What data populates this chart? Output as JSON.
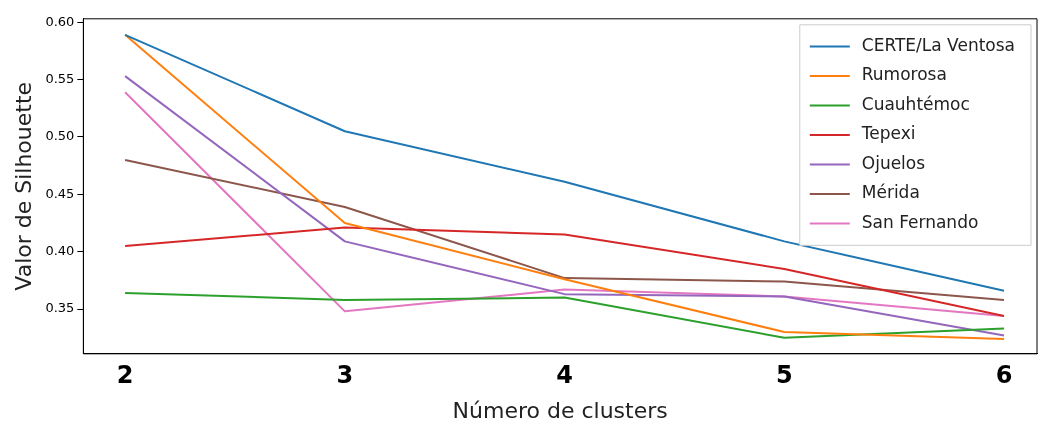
{
  "chart_data": {
    "type": "line",
    "xlabel": "Número de clusters",
    "ylabel": "Valor de Silhouette",
    "x": [
      2,
      3,
      4,
      5,
      6
    ],
    "xlim": [
      1.81,
      6.15
    ],
    "xticks": [
      2,
      3,
      4,
      5,
      6
    ],
    "ylim": [
      0.311,
      0.603
    ],
    "yticks": [
      {
        "value": 0.35,
        "label": "0.35"
      },
      {
        "value": 0.4,
        "label": "0.40"
      },
      {
        "value": 0.45,
        "label": "0.45"
      },
      {
        "value": 0.5,
        "label": "0.50"
      },
      {
        "value": 0.55,
        "label": "0.55"
      },
      {
        "value": 0.6,
        "label": "0.60"
      }
    ],
    "grid": false,
    "legend": "top right",
    "marker": "none",
    "line_style": "solid",
    "series": [
      {
        "name": "CERTE/La Ventosa",
        "color": "#1f77b4",
        "values": [
          0.589,
          0.505,
          0.461,
          0.409,
          0.366
        ]
      },
      {
        "name": "Rumorosa",
        "color": "#ff7f0e",
        "values": [
          0.589,
          0.425,
          0.376,
          0.33,
          0.324
        ]
      },
      {
        "name": "Cuauhtémoc",
        "color": "#2ca02c",
        "values": [
          0.364,
          0.358,
          0.36,
          0.325,
          0.333
        ]
      },
      {
        "name": "Tepexi",
        "color": "#d62728",
        "values": [
          0.405,
          0.421,
          0.415,
          0.385,
          0.344
        ]
      },
      {
        "name": "Ojuelos",
        "color": "#9467bd",
        "values": [
          0.553,
          0.409,
          0.363,
          0.361,
          0.327
        ]
      },
      {
        "name": "Mérida",
        "color": "#8c564b",
        "values": [
          0.48,
          0.439,
          0.377,
          0.374,
          0.358
        ]
      },
      {
        "name": "San Fernando",
        "color": "#e377c2",
        "values": [
          0.539,
          0.348,
          0.367,
          0.361,
          0.344
        ]
      }
    ]
  }
}
